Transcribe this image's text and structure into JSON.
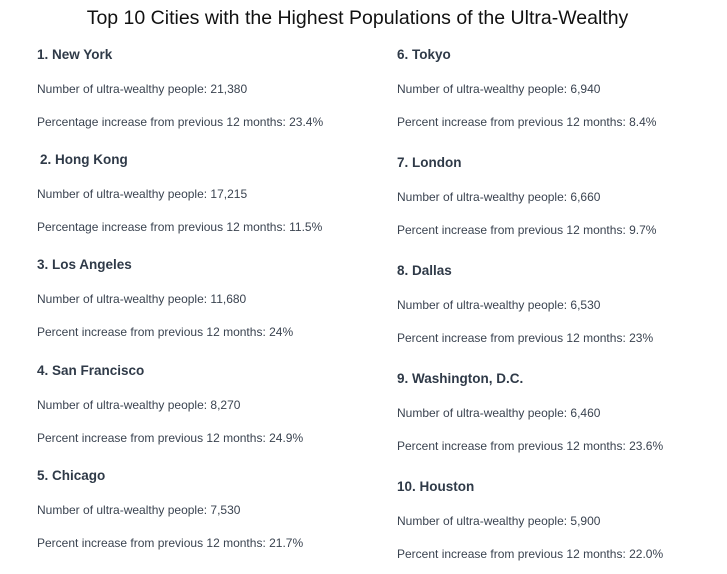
{
  "title": "Top 10 Cities with the Highest Populations of the Ultra-Wealthy",
  "cities": [
    {
      "name": "1. New York",
      "count": "Number of ultra-wealthy people: 21,380",
      "increase": "Percentage increase from previous 12 months: 23.4%"
    },
    {
      "name": "2. Hong Kong",
      "count": "Number of ultra-wealthy people: 17,215",
      "increase": "Percentage increase from previous 12 months: 11.5%"
    },
    {
      "name": "3. Los Angeles",
      "count": "Number of ultra-wealthy people: 11,680",
      "increase": "Percent increase from previous 12 months: 24%"
    },
    {
      "name": "4. San Francisco",
      "count": "Number of ultra-wealthy people: 8,270",
      "increase": "Percent increase from previous 12 months: 24.9%"
    },
    {
      "name": "5. Chicago",
      "count": "Number of ultra-wealthy people: 7,530",
      "increase": "Percent increase from previous 12 months: 21.7%"
    },
    {
      "name": "6. Tokyo",
      "count": "Number of ultra-wealthy people: 6,940",
      "increase": "Percent increase from previous 12 months: 8.4%"
    },
    {
      "name": "7. London",
      "count": "Number of ultra-wealthy people: 6,660",
      "increase": "Percent increase from previous 12 months: 9.7%"
    },
    {
      "name": "8. Dallas",
      "count": "Number of ultra-wealthy people: 6,530",
      "increase": "Percent increase from previous 12 months: 23%"
    },
    {
      "name": "9. Washington, D.C.",
      "count": "Number of ultra-wealthy people: 6,460",
      "increase": "Percent increase from previous 12 months: 23.6%"
    },
    {
      "name": "10. Houston",
      "count": "Number of ultra-wealthy people: 5,900",
      "increase": "Percent increase from previous 12 months: 22.0%"
    }
  ]
}
